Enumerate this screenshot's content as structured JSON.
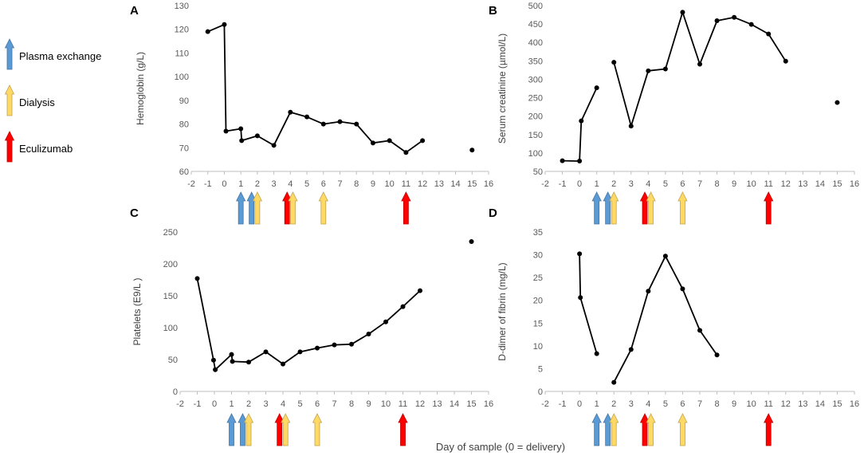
{
  "colors": {
    "plasma_exchange": "#5B9BD5",
    "dialysis": "#FFD966",
    "eculizumab": "#FF0000",
    "line": "#000000",
    "axis": "#BFBFBF"
  },
  "legend": [
    {
      "key": "plasma_exchange",
      "label": "Plasma exchange"
    },
    {
      "key": "dialysis",
      "label": "Dialysis"
    },
    {
      "key": "eculizumab",
      "label": "Eculizumab"
    }
  ],
  "x_axis_label": "Day of sample (0 = delivery)",
  "treatment_events": [
    {
      "day": 1,
      "type": "plasma_exchange"
    },
    {
      "day": 1.65,
      "type": "plasma_exchange"
    },
    {
      "day": 2,
      "type": "dialysis"
    },
    {
      "day": 3.8,
      "type": "eculizumab"
    },
    {
      "day": 4.15,
      "type": "dialysis"
    },
    {
      "day": 6,
      "type": "dialysis"
    },
    {
      "day": 11,
      "type": "eculizumab"
    }
  ],
  "chart_data": [
    {
      "panel": "A",
      "type": "line",
      "ylabel": "Hemoglobin (g/L)",
      "ylim": [
        60,
        130
      ],
      "yticks": [
        60,
        70,
        80,
        90,
        100,
        110,
        120,
        130
      ],
      "xlim": [
        -2,
        16
      ],
      "xticks": [
        -2,
        -1,
        0,
        1,
        2,
        3,
        4,
        5,
        6,
        7,
        8,
        9,
        10,
        11,
        12,
        13,
        14,
        15,
        16
      ],
      "segments": [
        [
          [
            -1,
            119
          ],
          [
            0,
            122
          ],
          [
            0.1,
            77
          ],
          [
            1,
            78
          ],
          [
            1.05,
            73
          ],
          [
            2,
            75
          ],
          [
            3,
            71
          ],
          [
            4,
            85
          ],
          [
            5,
            83
          ],
          [
            6,
            80
          ],
          [
            7,
            81
          ],
          [
            8,
            80
          ],
          [
            9,
            72
          ],
          [
            10,
            73
          ],
          [
            11,
            68
          ],
          [
            12,
            73
          ]
        ],
        [
          [
            15,
            69
          ]
        ]
      ]
    },
    {
      "panel": "B",
      "type": "line",
      "ylabel": "Serum creatinine (µmol/L)",
      "ylim": [
        50,
        500
      ],
      "yticks": [
        50,
        100,
        150,
        200,
        250,
        300,
        350,
        400,
        450,
        500
      ],
      "xlim": [
        -2,
        16
      ],
      "xticks": [
        -2,
        -1,
        0,
        1,
        2,
        3,
        4,
        5,
        6,
        7,
        8,
        9,
        10,
        11,
        12,
        13,
        14,
        15,
        16
      ],
      "segments": [
        [
          [
            -1,
            79
          ],
          [
            0,
            78
          ],
          [
            0.1,
            187
          ],
          [
            1,
            277
          ]
        ],
        [
          [
            2,
            346
          ],
          [
            3,
            173
          ],
          [
            4,
            323
          ],
          [
            5,
            328
          ],
          [
            6,
            482
          ],
          [
            7,
            341
          ],
          [
            8,
            459
          ],
          [
            9,
            468
          ],
          [
            10,
            449
          ],
          [
            11,
            423
          ],
          [
            12,
            349
          ]
        ],
        [
          [
            15,
            237
          ]
        ]
      ]
    },
    {
      "panel": "C",
      "type": "line",
      "ylabel": "Platelets (E9/L )",
      "ylim": [
        0,
        250
      ],
      "yticks": [
        0,
        50,
        100,
        150,
        200,
        250
      ],
      "xlim": [
        -2,
        16
      ],
      "xticks": [
        -2,
        -1,
        0,
        1,
        2,
        3,
        4,
        5,
        6,
        7,
        8,
        9,
        10,
        11,
        12,
        13,
        14,
        15,
        16
      ],
      "segments": [
        [
          [
            -1,
            177
          ],
          [
            -0.05,
            49
          ],
          [
            0.05,
            34
          ],
          [
            1,
            58
          ],
          [
            1.05,
            47
          ],
          [
            2,
            46
          ],
          [
            3,
            62
          ],
          [
            4,
            43
          ],
          [
            5,
            62
          ],
          [
            6,
            68
          ],
          [
            7,
            73
          ],
          [
            8,
            74
          ],
          [
            9,
            90
          ],
          [
            10,
            109
          ],
          [
            11,
            133
          ],
          [
            12,
            158
          ]
        ],
        [
          [
            15,
            235
          ]
        ]
      ]
    },
    {
      "panel": "D",
      "type": "line",
      "ylabel": "D-dimer of fibrin (mg/L)",
      "ylim": [
        0,
        35
      ],
      "yticks": [
        0,
        5,
        10,
        15,
        20,
        25,
        30,
        35
      ],
      "xlim": [
        -2,
        16
      ],
      "xticks": [
        -2,
        -1,
        0,
        1,
        2,
        3,
        4,
        5,
        6,
        7,
        8,
        9,
        10,
        11,
        12,
        13,
        14,
        15,
        16
      ],
      "segments": [
        [
          [
            0,
            30.2
          ],
          [
            0.05,
            20.6
          ],
          [
            1,
            8.3
          ]
        ],
        [
          [
            2,
            2
          ],
          [
            3,
            9.2
          ],
          [
            4,
            22
          ],
          [
            5,
            29.7
          ],
          [
            6,
            22.5
          ],
          [
            7,
            13.4
          ],
          [
            8,
            8
          ]
        ]
      ]
    }
  ]
}
